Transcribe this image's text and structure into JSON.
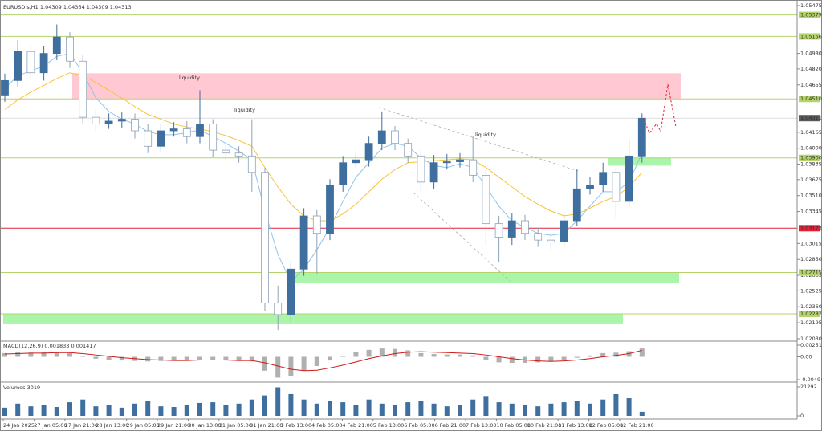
{
  "chart_data": {
    "type": "candlestick",
    "header": "EURUSD.s,H1  1.04309 1.04364 1.04309 1.04313",
    "ylim": [
      1.0203,
      1.05475
    ],
    "yticks": [
      1.05475,
      {
        "value": 1.0498,
        "label": "1.04980"
      },
      {
        "value": 1.0482,
        "label": "1.04820"
      },
      1.04655,
      1.04165,
      {
        "value": 1.04,
        "label": "1.04000"
      },
      1.03835,
      1.03675,
      {
        "value": 1.0351,
        "label": "1.03510"
      },
      1.03345,
      1.03015,
      {
        "value": 1.0285,
        "label": "1.02850"
      },
      1.02685,
      1.02525,
      {
        "value": 1.0236,
        "label": "1.02360"
      },
      1.02195,
      {
        "value": 1.0203,
        "label": "1.02030"
      }
    ],
    "levels": [
      {
        "value": 1.05379,
        "label": "1.05379",
        "color": "#b5d36b"
      },
      {
        "value": 1.05156,
        "label": "1.05156",
        "color": "#b5d36b"
      },
      {
        "value": 1.0451,
        "label": "1.04510",
        "color": "#b5d36b"
      },
      {
        "value": 1.039,
        "label": "1.03900",
        "color": "#b5d36b"
      },
      {
        "value": 1.03173,
        "label": "1.03173",
        "color": "#e0233a"
      },
      {
        "value": 1.02715,
        "label": "1.02715",
        "color": "#b5d36b"
      },
      {
        "value": 1.02287,
        "label": "1.02287",
        "color": "#b5d36b"
      }
    ],
    "current_price": {
      "value": 1.04311,
      "label": "1.04311",
      "color": "#5a5a5a"
    },
    "zones": [
      {
        "from": 1.0451,
        "to": 1.04775,
        "color": "#ffc8d2"
      },
      {
        "from": 1.0382,
        "to": 1.039,
        "color": "#aaf5aa"
      },
      {
        "from": 1.0261,
        "to": 1.02715,
        "color": "#aaf5aa"
      },
      {
        "from": 1.0218,
        "to": 1.02287,
        "color": "#aaf5aa"
      }
    ],
    "annotations": [
      "liquidity",
      "liquidity",
      "liquidity"
    ],
    "up_color": "#3f6f9f",
    "down_color": "#8ea2b8",
    "open": [
      1.0455,
      1.047,
      1.05,
      1.0478,
      1.0498,
      1.0515,
      1.049,
      1.0432,
      1.0425,
      1.0428,
      1.043,
      1.0418,
      1.0402,
      1.0418,
      1.042,
      1.0412,
      1.0425,
      1.0398,
      1.0395,
      1.0392,
      1.0375,
      1.024,
      1.0228,
      1.0275,
      1.033,
      1.0312,
      1.0362,
      1.0385,
      1.0388,
      1.0405,
      1.0418,
      1.0405,
      1.0392,
      1.0365,
      1.0385,
      1.0386,
      1.0388,
      1.0372,
      1.0322,
      1.0308,
      1.0325,
      1.0312,
      1.0305,
      1.0303,
      1.0325,
      1.0358,
      1.0362,
      1.0375,
      1.0345,
      1.0392
    ],
    "high": [
      1.0477,
      1.0512,
      1.0507,
      1.0506,
      1.0528,
      1.052,
      1.0496,
      1.044,
      1.0436,
      1.0437,
      1.0436,
      1.0425,
      1.0425,
      1.0427,
      1.0428,
      1.046,
      1.043,
      1.0405,
      1.0402,
      1.043,
      1.038,
      1.0258,
      1.0282,
      1.0338,
      1.0336,
      1.0368,
      1.0392,
      1.0395,
      1.0412,
      1.0438,
      1.0423,
      1.041,
      1.0398,
      1.0393,
      1.0394,
      1.0395,
      1.0412,
      1.0378,
      1.033,
      1.0333,
      1.0331,
      1.0318,
      1.0311,
      1.0332,
      1.0378,
      1.037,
      1.0385,
      1.038,
      1.041,
      1.0436
    ],
    "low": [
      1.0448,
      1.0463,
      1.0471,
      1.047,
      1.0491,
      1.0483,
      1.0425,
      1.0418,
      1.042,
      1.0421,
      1.041,
      1.0395,
      1.0396,
      1.0412,
      1.0405,
      1.0405,
      1.0391,
      1.0388,
      1.0385,
      1.0355,
      1.0232,
      1.0212,
      1.022,
      1.0268,
      1.027,
      1.0305,
      1.0355,
      1.038,
      1.0381,
      1.0398,
      1.0398,
      1.0385,
      1.0355,
      1.0358,
      1.0378,
      1.038,
      1.0365,
      1.03,
      1.0282,
      1.03,
      1.0305,
      1.0298,
      1.0295,
      1.0298,
      1.032,
      1.0352,
      1.0355,
      1.0328,
      1.034,
      1.0385
    ],
    "close": [
      1.047,
      1.05,
      1.0478,
      1.0498,
      1.0515,
      1.049,
      1.0432,
      1.0425,
      1.0428,
      1.043,
      1.0418,
      1.0402,
      1.0418,
      1.042,
      1.0412,
      1.0425,
      1.0398,
      1.0395,
      1.0392,
      1.0375,
      1.024,
      1.0228,
      1.0275,
      1.033,
      1.0312,
      1.0362,
      1.0385,
      1.0388,
      1.0405,
      1.0418,
      1.0405,
      1.0392,
      1.0365,
      1.0385,
      1.0386,
      1.0388,
      1.0372,
      1.0322,
      1.0308,
      1.0325,
      1.0312,
      1.0305,
      1.0303,
      1.0325,
      1.0358,
      1.0362,
      1.0375,
      1.0345,
      1.0392,
      1.0431
    ],
    "moving_averages": [
      {
        "color": "#8fc3e8",
        "values": [
          1.0462,
          1.0475,
          1.048,
          1.0485,
          1.0495,
          1.0498,
          1.0478,
          1.0452,
          1.0438,
          1.043,
          1.0425,
          1.0417,
          1.0414,
          1.0414,
          1.0416,
          1.0419,
          1.0412,
          1.0405,
          1.0397,
          1.0388,
          1.0335,
          1.029,
          1.0262,
          1.0275,
          1.0295,
          1.0318,
          1.0345,
          1.037,
          1.0385,
          1.04,
          1.0405,
          1.0402,
          1.039,
          1.0382,
          1.038,
          1.0384,
          1.038,
          1.036,
          1.034,
          1.0325,
          1.0318,
          1.0312,
          1.031,
          1.0312,
          1.0325,
          1.034,
          1.0355,
          1.0355,
          1.0365,
          1.0395
        ]
      },
      {
        "color": "#f7c23c",
        "values": [
          1.044,
          1.045,
          1.0458,
          1.0465,
          1.0472,
          1.0478,
          1.0475,
          1.0468,
          1.046,
          1.0452,
          1.0443,
          1.0435,
          1.043,
          1.0425,
          1.0422,
          1.042,
          1.0417,
          1.0413,
          1.0408,
          1.0402,
          1.038,
          1.036,
          1.0342,
          1.033,
          1.0325,
          1.0325,
          1.0332,
          1.0342,
          1.0355,
          1.0368,
          1.0378,
          1.0385,
          1.0386,
          1.0387,
          1.0388,
          1.0389,
          1.0388,
          1.038,
          1.037,
          1.036,
          1.035,
          1.0342,
          1.0335,
          1.033,
          1.0332,
          1.0338,
          1.0345,
          1.035,
          1.036,
          1.0375
        ]
      }
    ],
    "macd": {
      "label": "MACD(12,26,9) 0.001833 0.001417",
      "ylim": [
        -0.004948,
        0.002515
      ],
      "yticks": [
        0.002515,
        {
          "value": 0,
          "label": "0.00"
        },
        -0.004948
      ],
      "hist_color": "#b0b0b0",
      "signal_color": "#d01818",
      "values": [
        0.0008,
        0.001,
        0.0009,
        0.001,
        0.0011,
        0.0008,
        0.0002,
        -0.0004,
        -0.0007,
        -0.0008,
        -0.0009,
        -0.001,
        -0.0009,
        -0.0008,
        -0.0008,
        -0.0006,
        -0.0007,
        -0.0008,
        -0.0009,
        -0.001,
        -0.003,
        -0.0045,
        -0.0042,
        -0.003,
        -0.002,
        -0.0008,
        0.0002,
        0.001,
        0.0015,
        0.0018,
        0.0017,
        0.0014,
        0.0008,
        0.0006,
        0.0005,
        0.0005,
        0.0003,
        -0.0006,
        -0.0012,
        -0.0013,
        -0.0013,
        -0.0012,
        -0.001,
        -0.0007,
        -0.0002,
        0.0003,
        0.0008,
        0.0009,
        0.0012,
        0.0018
      ],
      "signal": [
        0.0006,
        0.0007,
        0.0008,
        0.0008,
        0.0009,
        0.0009,
        0.0007,
        0.0004,
        0.0001,
        -0.0002,
        -0.0004,
        -0.0006,
        -0.0007,
        -0.0008,
        -0.0008,
        -0.0007,
        -0.0007,
        -0.0007,
        -0.0008,
        -0.0008,
        -0.0013,
        -0.002,
        -0.0027,
        -0.003,
        -0.0029,
        -0.0024,
        -0.0018,
        -0.0011,
        -0.0004,
        0.0002,
        0.0007,
        0.001,
        0.0011,
        0.001,
        0.0009,
        0.0008,
        0.0007,
        0.0004,
        0.0,
        -0.0004,
        -0.0007,
        -0.0009,
        -0.001,
        -0.0009,
        -0.0007,
        -0.0004,
        0.0,
        0.0003,
        0.0007,
        0.0014
      ]
    },
    "volumes": {
      "label": "Volumes 3019",
      "ylim": [
        0,
        21292
      ],
      "yticks": [
        21292,
        0
      ],
      "color": "#3f6f9f",
      "values": [
        6000,
        9000,
        7000,
        8000,
        6500,
        10000,
        12000,
        7000,
        8000,
        6000,
        9000,
        11000,
        7000,
        6500,
        8000,
        9500,
        10000,
        8000,
        9000,
        12000,
        15000,
        21000,
        16000,
        12000,
        9000,
        11000,
        10000,
        8000,
        12000,
        9000,
        8000,
        10000,
        11000,
        9000,
        7000,
        8000,
        12000,
        14000,
        10000,
        9000,
        8000,
        7000,
        9000,
        10000,
        11000,
        9000,
        12000,
        16000,
        13000,
        3019
      ]
    },
    "time_labels": [
      "24 Jan 2025",
      "27 Jan 05:00",
      "27 Jan 21:00",
      "28 Jan 13:00",
      "29 Jan 05:00",
      "29 Jan 21:00",
      "30 Jan 13:00",
      "31 Jan 05:00",
      "31 Jan 21:00",
      "3 Feb 13:00",
      "4 Feb 05:00",
      "4 Feb 21:00",
      "5 Feb 13:00",
      "6 Feb 05:00",
      "6 Feb 21:00",
      "7 Feb 13:00",
      "10 Feb 05:00",
      "10 Feb 21:00",
      "11 Feb 13:00",
      "12 Feb 05:00",
      "12 Feb 21:00"
    ]
  }
}
